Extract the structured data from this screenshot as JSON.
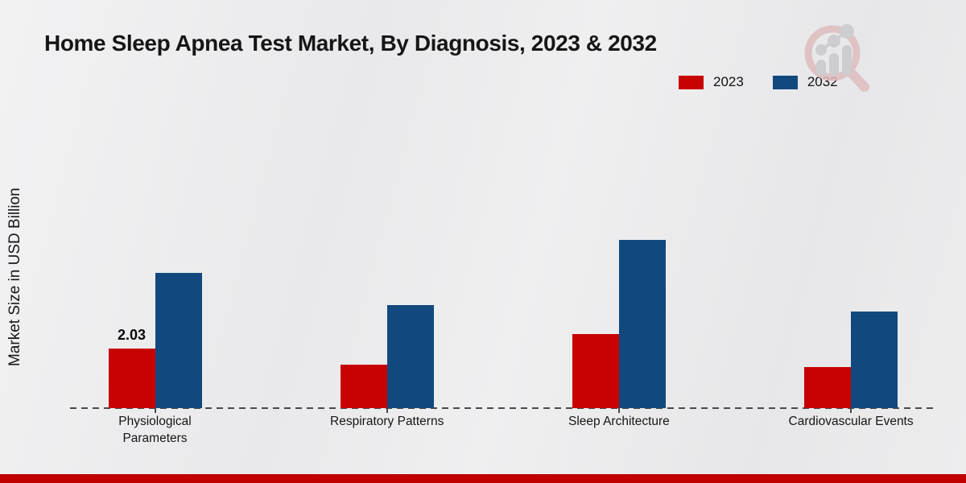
{
  "page_title": "Home Sleep Apnea Test Market, By Diagnosis, 2023 & 2032",
  "colors": {
    "series_2023": "#c80102",
    "series_2032": "#11497f",
    "footer_bar": "#c00000",
    "baseline": "#4a4a4a"
  },
  "legend": {
    "items": [
      {
        "label": "2023",
        "color": "#c80102"
      },
      {
        "label": "2032",
        "color": "#11497f"
      }
    ]
  },
  "watermark_icon": "magnifier-bar-chart-logo",
  "chart_data": {
    "type": "bar",
    "title": "Home Sleep Apnea Test Market, By Diagnosis, 2023 & 2032",
    "xlabel": "",
    "ylabel": "Market Size in USD Billion",
    "categories": [
      "Physiological Parameters",
      "Respiratory Patterns",
      "Sleep Architecture",
      "Cardiovascular Events"
    ],
    "series": [
      {
        "name": "2023",
        "color": "#c80102",
        "values": [
          2.03,
          1.48,
          2.52,
          1.4
        ],
        "labels": [
          "2.03",
          "",
          "",
          ""
        ]
      },
      {
        "name": "2032",
        "color": "#11497f",
        "values": [
          4.61,
          3.51,
          5.73,
          3.29
        ],
        "labels": [
          "",
          "",
          "",
          ""
        ]
      }
    ],
    "ylim": [
      0,
      7
    ],
    "grid": false,
    "legend_position": "top-right",
    "baseline_style": "dashed",
    "y_axis_ticks_visible": false
  }
}
